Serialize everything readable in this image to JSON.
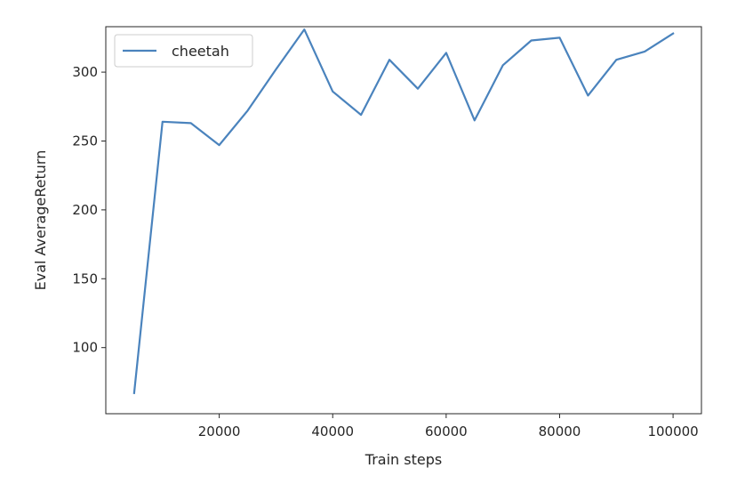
{
  "chart_data": {
    "type": "line",
    "title": "",
    "xlabel": "Train steps",
    "ylabel": "Eval AverageReturn",
    "xlim": [
      0,
      105000
    ],
    "ylim": [
      52,
      333
    ],
    "xticks": [
      20000,
      40000,
      60000,
      80000,
      100000
    ],
    "yticks": [
      100,
      150,
      200,
      250,
      300
    ],
    "grid": false,
    "legend": {
      "position": "upper-left",
      "entries": [
        "cheetah"
      ]
    },
    "series": [
      {
        "name": "cheetah",
        "color": "#4a83bd",
        "x": [
          5000,
          10000,
          15000,
          20000,
          25000,
          30000,
          35000,
          40000,
          45000,
          50000,
          55000,
          60000,
          65000,
          70000,
          75000,
          80000,
          85000,
          90000,
          95000,
          100000
        ],
        "y": [
          67,
          264,
          263,
          247,
          272,
          302,
          331,
          286,
          269,
          309,
          288,
          314,
          265,
          305,
          323,
          325,
          283,
          309,
          315,
          328
        ]
      }
    ]
  }
}
